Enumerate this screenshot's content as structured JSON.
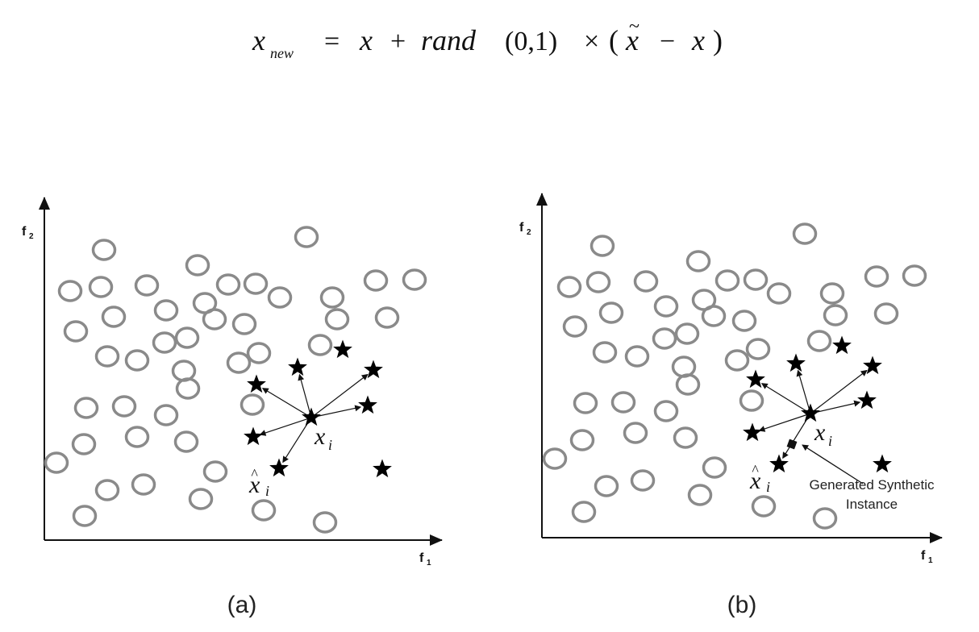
{
  "formula": {
    "lhs": "x",
    "lhs_sub": "new",
    "eq": "=",
    "x1": "x",
    "plus": "+",
    "rand": "rand",
    "args": "(0,1)",
    "times": "×",
    "open_paren": "(",
    "xtilde": "x",
    "tilde": "~",
    "minus": "−",
    "x2": "x",
    "close_paren": ")"
  },
  "panels": [
    {
      "caption": "(a)",
      "y_axis_label": "f",
      "y_axis_sub": "2",
      "x_axis_label": "f",
      "x_axis_sub": "1",
      "center_label": "x",
      "center_sub": "i",
      "neighbor_label": "x",
      "neighbor_hat": "^",
      "neighbor_sub": "i"
    },
    {
      "caption": "(b)",
      "y_axis_label": "f",
      "y_axis_sub": "2",
      "x_axis_label": "f",
      "x_axis_sub": "1",
      "center_label": "x",
      "center_sub": "i",
      "neighbor_label": "x",
      "neighbor_hat": "^",
      "neighbor_sub": "i",
      "callout_line1": "Generated Synthetic",
      "callout_line2": "Instance"
    }
  ],
  "colors": {
    "majority_circle": "#8a8a8a",
    "minority_star": "#000000",
    "axis": "#111111"
  }
}
